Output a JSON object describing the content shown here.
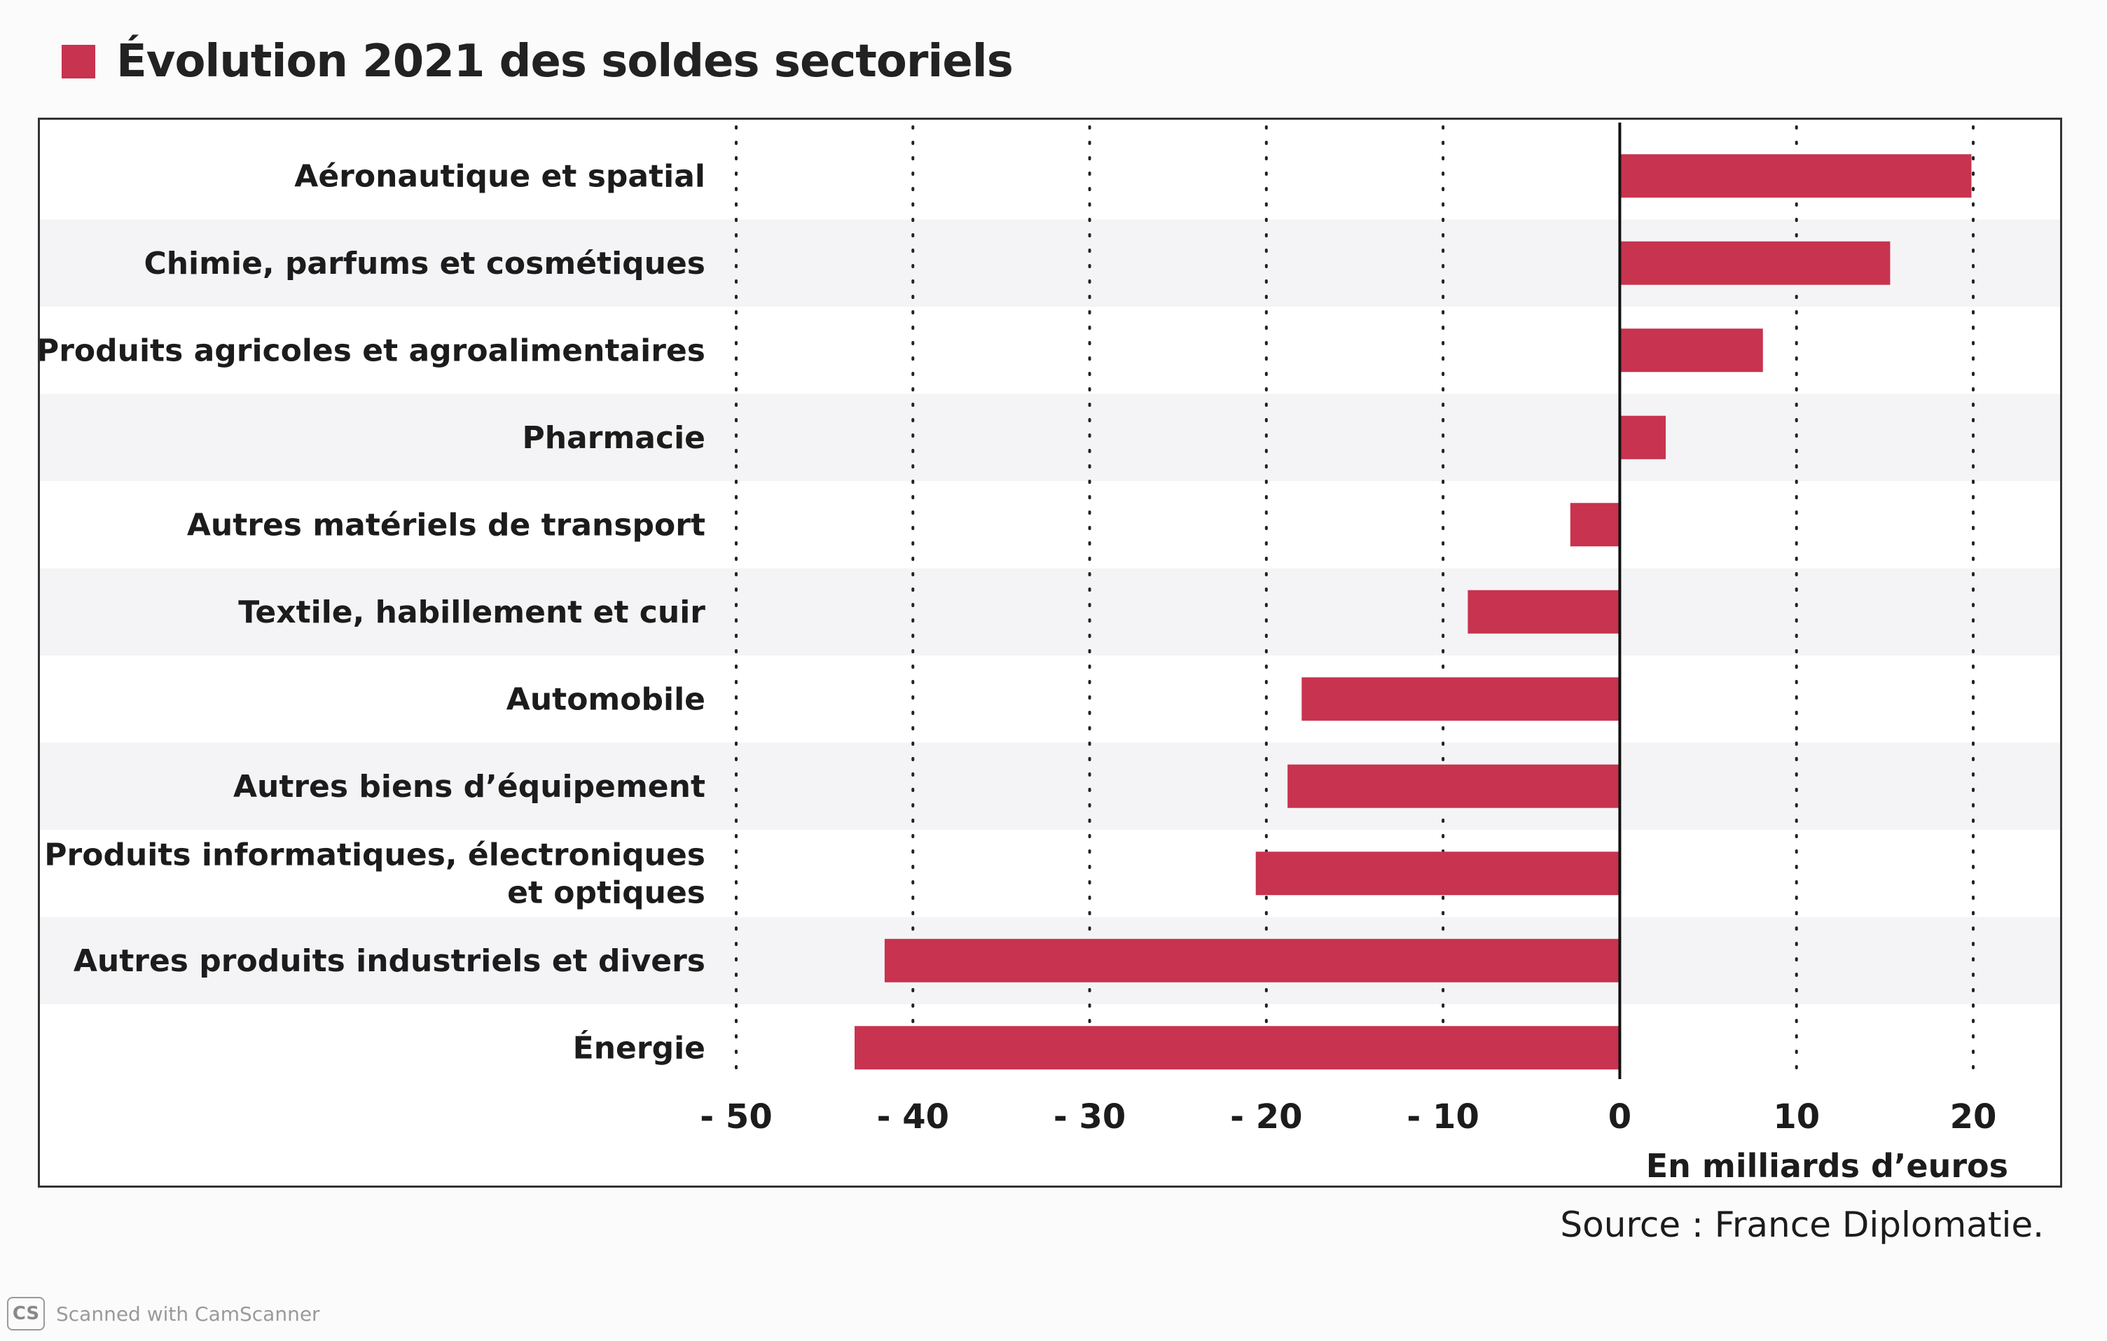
{
  "header": {
    "title": "Évolution 2021 des soldes sectoriels"
  },
  "source": "Source : France Diplomatie.",
  "watermark": {
    "badge": "CS",
    "text": "Scanned with CamScanner"
  },
  "colors": {
    "bar": "#c8334f",
    "accent_square": "#c8334f"
  },
  "chart_data": {
    "type": "bar",
    "orientation": "horizontal",
    "title": "Évolution 2021 des soldes sectoriels",
    "xlabel": "En milliards d’euros",
    "ylabel": "",
    "xlim": [
      -50,
      20
    ],
    "xticks": [
      -50,
      -40,
      -30,
      -20,
      -10,
      0,
      10,
      20
    ],
    "xtick_labels": [
      "- 50",
      "- 40",
      "- 30",
      "- 20",
      "- 10",
      "0",
      "10",
      "20"
    ],
    "grid": "vertical dotted",
    "categories": [
      [
        "Aéronautique et spatial"
      ],
      [
        "Chimie, parfums et cosmétiques"
      ],
      [
        "Produits agricoles et agroalimentaires"
      ],
      [
        "Pharmacie"
      ],
      [
        "Autres matériels de transport"
      ],
      [
        "Textile, habillement et cuir"
      ],
      [
        "Automobile"
      ],
      [
        "Autres biens d’équipement"
      ],
      [
        "Produits informatiques, électroniques",
        "et optiques"
      ],
      [
        "Autres produits industriels et divers"
      ],
      [
        "Énergie"
      ]
    ],
    "values": [
      19.9,
      15.3,
      8.1,
      2.6,
      -2.8,
      -8.6,
      -18,
      -18.8,
      -20.6,
      -41.6,
      -43.3
    ]
  }
}
